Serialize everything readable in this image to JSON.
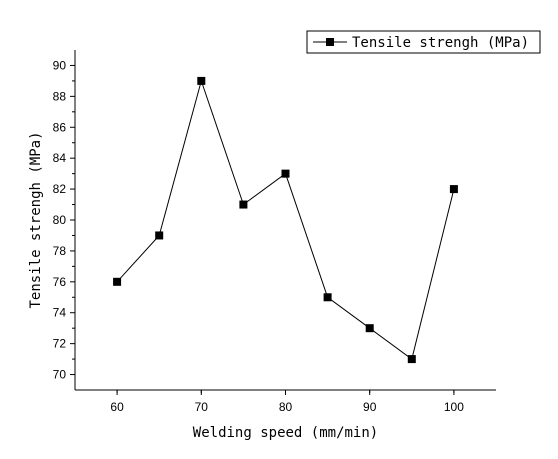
{
  "chart_data": {
    "type": "line",
    "title": "",
    "xlabel": "Welding speed (mm/min)",
    "ylabel": "Tensile strengh (MPa)",
    "x": [
      60,
      65,
      70,
      75,
      80,
      85,
      90,
      95,
      100
    ],
    "series": [
      {
        "name": "Tensile strengh (MPa)",
        "values": [
          76,
          79,
          89,
          81,
          83,
          75,
          73,
          71,
          82
        ],
        "marker": "square",
        "color": "#000000"
      }
    ],
    "xlim": [
      55,
      105
    ],
    "ylim": [
      69,
      91
    ],
    "xticks": [
      60,
      70,
      80,
      90,
      100
    ],
    "yticks": [
      70,
      72,
      74,
      76,
      78,
      80,
      82,
      84,
      86,
      88,
      90
    ],
    "grid": false,
    "legend_position": "top-right"
  }
}
